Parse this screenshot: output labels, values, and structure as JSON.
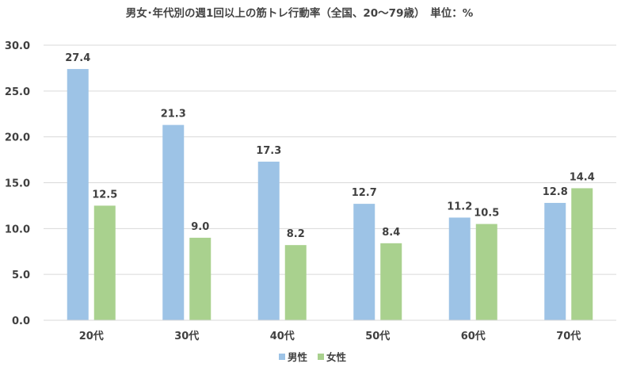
{
  "chart_data": {
    "type": "bar",
    "title": "男女･年代別の週1回以上の筋トレ行動率（全国、20～79歳）　単位：%",
    "categories": [
      "20代",
      "30代",
      "40代",
      "50代",
      "60代",
      "70代"
    ],
    "series": [
      {
        "name": "男性",
        "color": "#9DC3E6",
        "values": [
          27.4,
          21.3,
          17.3,
          12.7,
          11.2,
          12.8
        ],
        "labels": [
          "27.4",
          "21.3",
          "17.3",
          "12.7",
          "11.2",
          "12.8"
        ]
      },
      {
        "name": "女性",
        "color": "#A9D18E",
        "values": [
          12.5,
          9.0,
          8.2,
          8.4,
          10.5,
          14.4
        ],
        "labels": [
          "12.5",
          "9.0",
          "8.2",
          "8.4",
          "10.5",
          "14.4"
        ]
      }
    ],
    "ylim": [
      0,
      30
    ],
    "yticks": [
      "0.0",
      "5.0",
      "10.0",
      "15.0",
      "20.0",
      "25.0",
      "30.0"
    ],
    "grid": true,
    "legend_position": "bottom"
  }
}
